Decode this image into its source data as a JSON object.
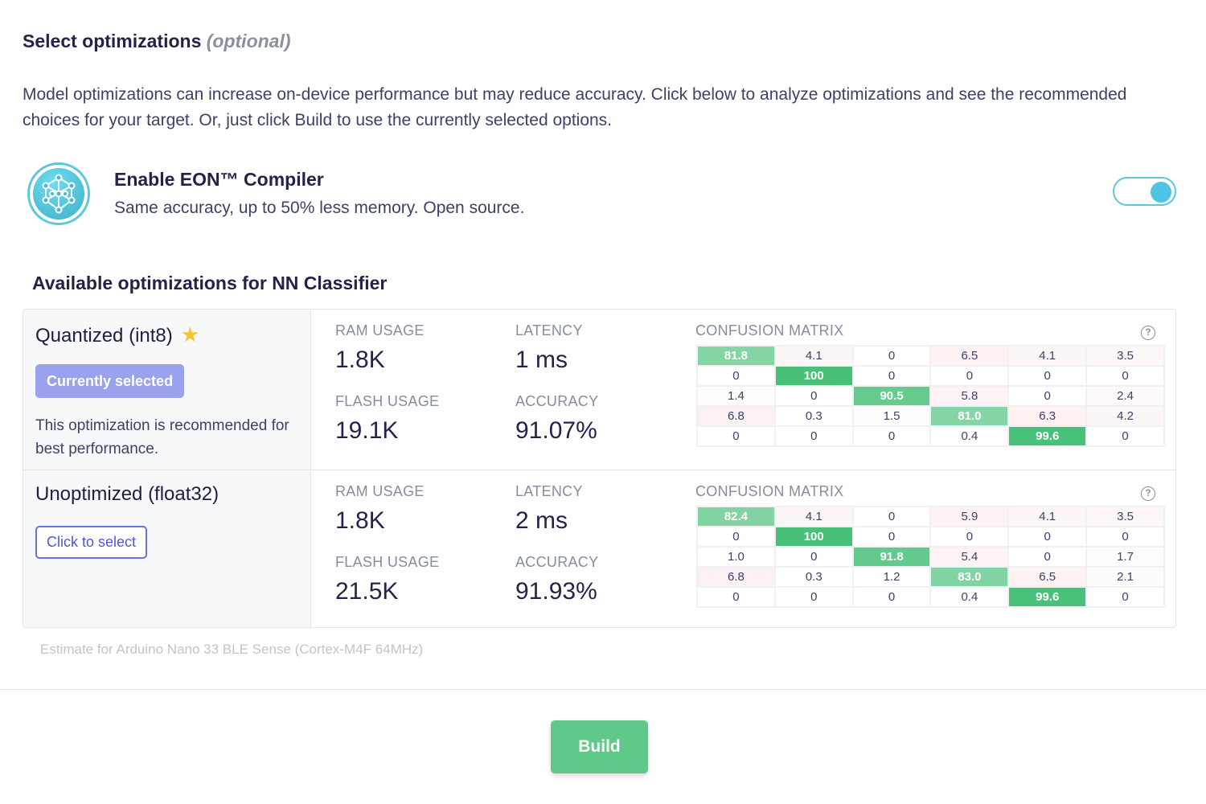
{
  "header": {
    "title": "Select optimizations",
    "title_suffix": "(optional)",
    "description": "Model optimizations can increase on-device performance but may reduce accuracy. Click below to analyze optimizations and see the recommended choices for your target. Or, just click Build to use the currently selected options."
  },
  "eon": {
    "title": "Enable EON™ Compiler",
    "subtitle": "Same accuracy, up to 50% less memory. Open source.",
    "enabled": true
  },
  "available_title": "Available optimizations for NN Classifier",
  "labels": {
    "ram": "RAM USAGE",
    "latency": "LATENCY",
    "flash": "FLASH USAGE",
    "accuracy": "ACCURACY",
    "matrix": "CONFUSION MATRIX",
    "help": "?"
  },
  "options": [
    {
      "name": "Quantized (int8)",
      "button": "Currently selected",
      "note": "This optimization is recommended for best performance.",
      "ram": "1.8K",
      "latency": "1 ms",
      "flash": "19.1K",
      "accuracy": "91.07%",
      "matrix": [
        [
          "81.8",
          "4.1",
          "0",
          "6.5",
          "4.1",
          "3.5"
        ],
        [
          "0",
          "100",
          "0",
          "0",
          "0",
          "0"
        ],
        [
          "1.4",
          "0",
          "90.5",
          "5.8",
          "0",
          "2.4"
        ],
        [
          "6.8",
          "0.3",
          "1.5",
          "81.0",
          "6.3",
          "4.2"
        ],
        [
          "0",
          "0",
          "0",
          "0.4",
          "99.6",
          "0"
        ]
      ]
    },
    {
      "name": "Unoptimized (float32)",
      "button": "Click to select",
      "ram": "1.8K",
      "latency": "2 ms",
      "flash": "21.5K",
      "accuracy": "91.93%",
      "matrix": [
        [
          "82.4",
          "4.1",
          "0",
          "5.9",
          "4.1",
          "3.5"
        ],
        [
          "0",
          "100",
          "0",
          "0",
          "0",
          "0"
        ],
        [
          "1.0",
          "0",
          "91.8",
          "5.4",
          "0",
          "1.7"
        ],
        [
          "6.8",
          "0.3",
          "1.2",
          "83.0",
          "6.5",
          "2.1"
        ],
        [
          "0",
          "0",
          "0",
          "0.4",
          "99.6",
          "0"
        ]
      ]
    }
  ],
  "estimate": "Estimate for Arduino Nano 33 BLE Sense (Cortex-M4F 64MHz)",
  "build_label": "Build",
  "colors": {
    "accent": "#5fc6de",
    "build": "#5fc98a",
    "selected": "#9aa2ee"
  }
}
